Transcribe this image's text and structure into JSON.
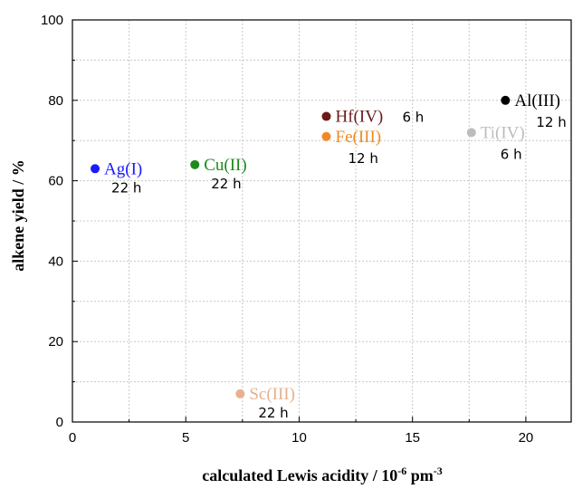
{
  "chart_data": {
    "type": "scatter",
    "title": "",
    "xlabel": "calculated Lewis acidity / 10",
    "xlabel_exp1": "-6",
    "xlabel_unit": " pm",
    "xlabel_exp2": "-3",
    "ylabel": "alkene yield / %",
    "xlim": [
      0,
      22
    ],
    "ylim": [
      0,
      100
    ],
    "x_ticks": [
      "0",
      "5",
      "10",
      "15",
      "20"
    ],
    "y_ticks": [
      "0",
      "20",
      "40",
      "60",
      "80",
      "100"
    ],
    "grid": true,
    "legend": "none",
    "points": [
      {
        "label": "Ag(I)",
        "time": "22 h",
        "x": 1.0,
        "y": 63,
        "color": "#1a1aff"
      },
      {
        "label": "Cu(II)",
        "time": "22 h",
        "x": 5.4,
        "y": 64,
        "color": "#1e8a1e"
      },
      {
        "label": "Sc(III)",
        "time": "22 h",
        "x": 7.4,
        "y": 7,
        "color": "#e8b08e"
      },
      {
        "label": "Hf(IV)",
        "time": "6 h",
        "x": 11.2,
        "y": 76,
        "color": "#6b1a1a"
      },
      {
        "label": "Fe(III)",
        "time": "12 h",
        "x": 11.2,
        "y": 71,
        "color": "#f08a24"
      },
      {
        "label": "Ti(IV)",
        "time": "6 h",
        "x": 17.6,
        "y": 72,
        "color": "#bdbdbd"
      },
      {
        "label": "Al(III)",
        "time": "12 h",
        "x": 19.1,
        "y": 80,
        "color": "#000000"
      }
    ]
  }
}
